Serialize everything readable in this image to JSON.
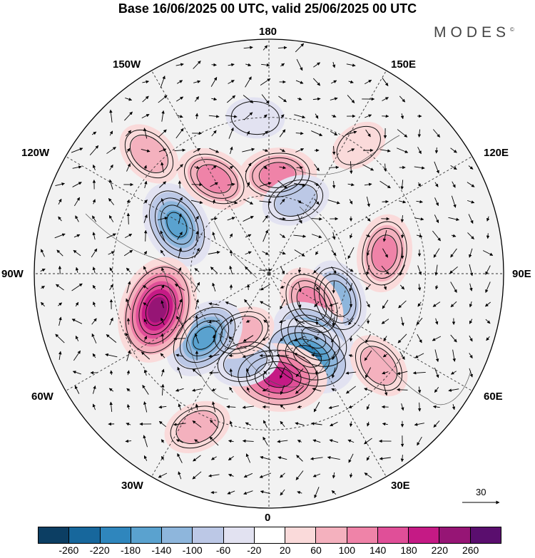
{
  "title": "Base 16/06/2025 00 UTC, valid 25/06/2025 00 UTC",
  "brand": "MODES",
  "brand_mark": "©",
  "longitude_labels": {
    "l180": "180",
    "l150e": "150E",
    "l120e": "120E",
    "l90e": "90E",
    "l60e": "60E",
    "l30e": "30E",
    "l0": "0",
    "l30w": "30W",
    "l60w": "60W",
    "l90w": "90W",
    "l120w": "120W",
    "l150w": "150W"
  },
  "reference_vector_label": "30",
  "colorbar": {
    "ticks": [
      "-260",
      "-220",
      "-180",
      "-140",
      "-100",
      "-60",
      "-20",
      "20",
      "60",
      "100",
      "140",
      "180",
      "220",
      "260"
    ],
    "colors": [
      "#0c3e63",
      "#17679c",
      "#2f86bd",
      "#5aa2cf",
      "#8eb6dc",
      "#bcc8e6",
      "#e2e2f1",
      "#ffffff",
      "#fadada",
      "#f4b1be",
      "#ef83a8",
      "#e04f98",
      "#c51a85",
      "#961575",
      "#5a0e6e"
    ]
  },
  "anomaly_centers": [
    {
      "lon": -118,
      "lat": 50,
      "value": -150
    },
    {
      "lon": -150,
      "lat": 48,
      "value": 110
    },
    {
      "lon": 175,
      "lat": 52,
      "value": 110
    },
    {
      "lon": -175,
      "lat": 30,
      "value": -50
    },
    {
      "lon": 160,
      "lat": 60,
      "value": -90
    },
    {
      "lon": 145,
      "lat": 30,
      "value": 50
    },
    {
      "lon": 100,
      "lat": 45,
      "value": 120
    },
    {
      "lon": 70,
      "lat": 62,
      "value": -110
    },
    {
      "lon": 55,
      "lat": 70,
      "value": 130
    },
    {
      "lon": 35,
      "lat": 60,
      "value": -170
    },
    {
      "lon": 25,
      "lat": 55,
      "value": -200
    },
    {
      "lon": 5,
      "lat": 50,
      "value": 200
    },
    {
      "lon": -15,
      "lat": 55,
      "value": -90
    },
    {
      "lon": -25,
      "lat": 65,
      "value": 90
    },
    {
      "lon": -45,
      "lat": 55,
      "value": -170
    },
    {
      "lon": -72,
      "lat": 45,
      "value": 230
    },
    {
      "lon": 50,
      "lat": 35,
      "value": 70
    },
    {
      "lon": -25,
      "lat": 25,
      "value": 60
    },
    {
      "lon": -135,
      "lat": 25,
      "value": 60
    }
  ]
}
